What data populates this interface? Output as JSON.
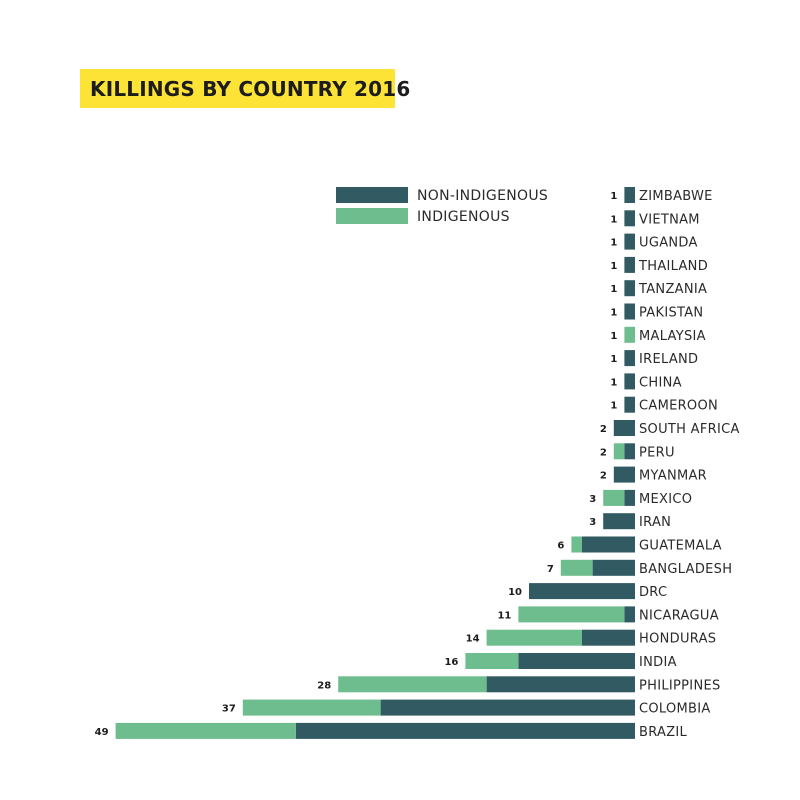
{
  "chart_data": {
    "type": "bar",
    "orientation": "horizontal",
    "stacked": true,
    "title": "KILLINGS BY COUNTRY 2016",
    "title_background": "#fde335",
    "categories": [
      "ZIMBABWE",
      "VIETNAM",
      "UGANDA",
      "THAILAND",
      "TANZANIA",
      "PAKISTAN",
      "MALAYSIA",
      "IRELAND",
      "CHINA",
      "CAMEROON",
      "SOUTH AFRICA",
      "PERU",
      "MYANMAR",
      "MEXICO",
      "IRAN",
      "GUATEMALA",
      "BANGLADESH",
      "DRC",
      "NICARAGUA",
      "HONDURAS",
      "INDIA",
      "PHILIPPINES",
      "COLOMBIA",
      "BRAZIL"
    ],
    "totals": [
      1,
      1,
      1,
      1,
      1,
      1,
      1,
      1,
      1,
      1,
      2,
      2,
      2,
      3,
      3,
      6,
      7,
      10,
      11,
      14,
      16,
      28,
      37,
      49
    ],
    "series": [
      {
        "name": "NON-INDIGENOUS",
        "color": "#325a62",
        "values": [
          1,
          1,
          1,
          1,
          1,
          1,
          0,
          1,
          1,
          1,
          2,
          1,
          2,
          1,
          3,
          5,
          4,
          10,
          1,
          5,
          11,
          14,
          24,
          32
        ]
      },
      {
        "name": "INDIGENOUS",
        "color": "#6dbd8e",
        "values": [
          0,
          0,
          0,
          0,
          0,
          0,
          1,
          0,
          0,
          0,
          0,
          1,
          0,
          2,
          0,
          1,
          3,
          0,
          10,
          9,
          5,
          14,
          13,
          17
        ]
      }
    ],
    "legend_position": "top",
    "grid": false,
    "axes_visible": false
  }
}
